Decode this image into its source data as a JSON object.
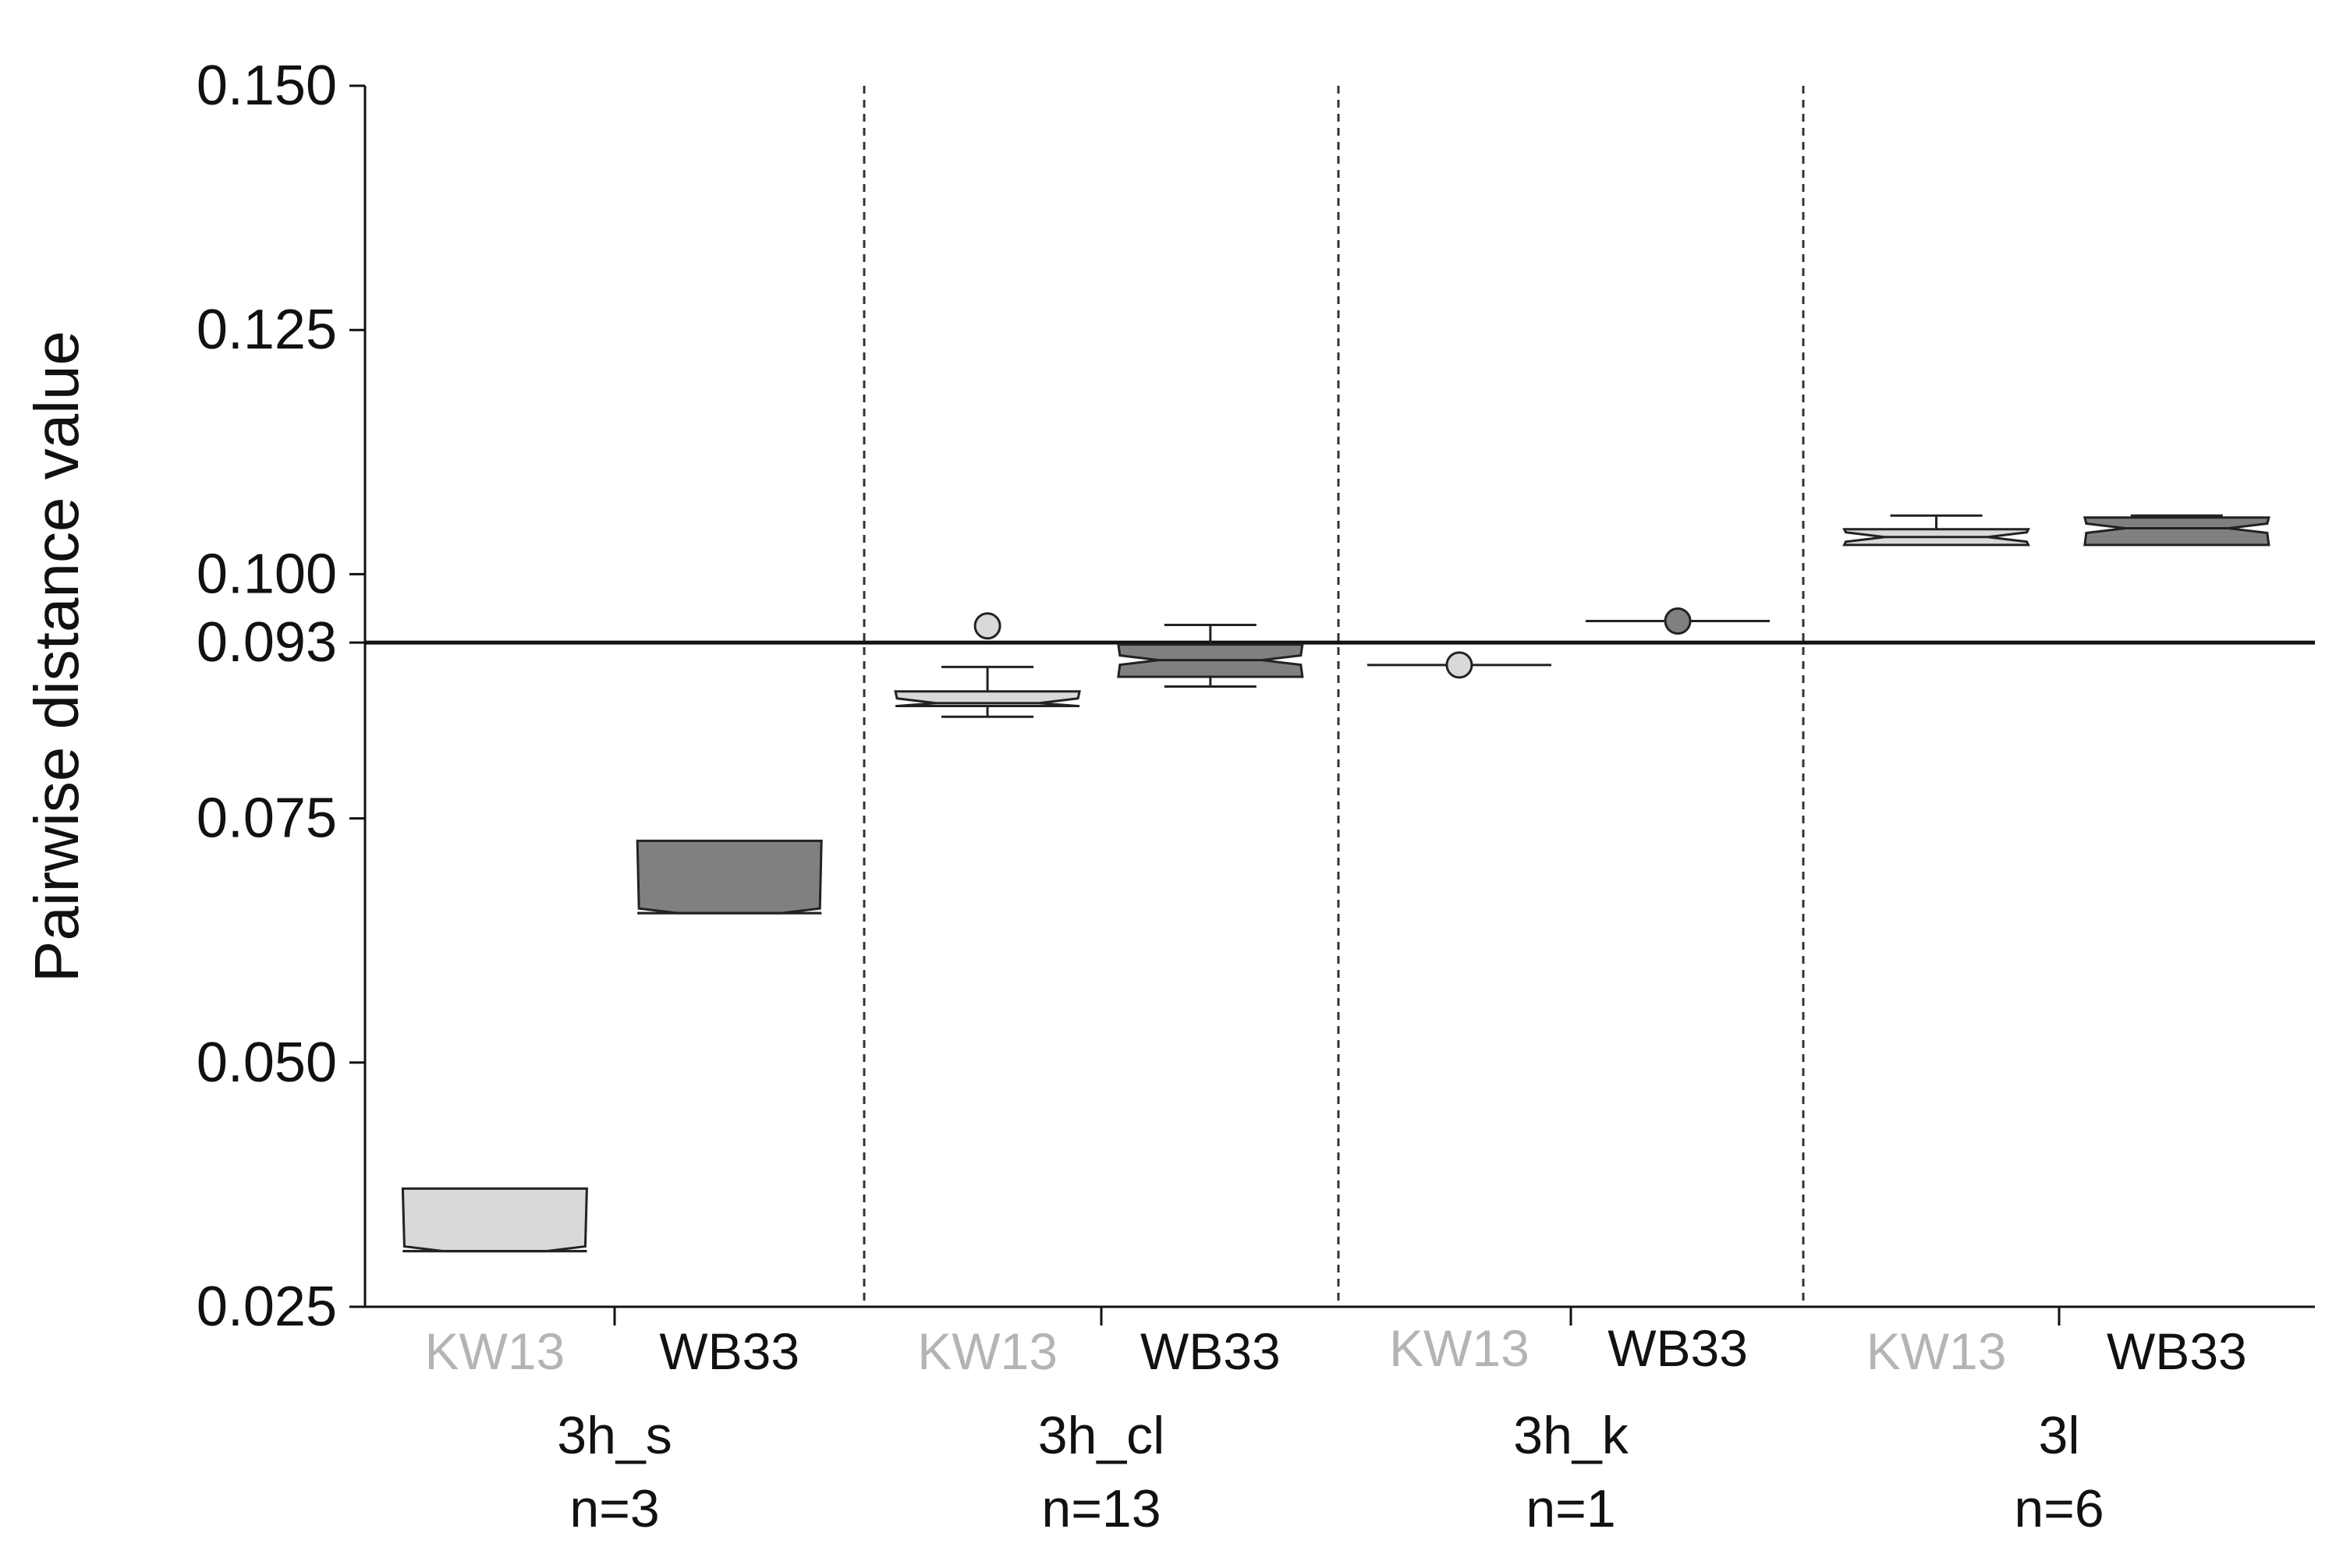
{
  "chart_data": {
    "type": "boxplot",
    "title": "",
    "xlabel": "",
    "ylabel": "Pairwise distance value",
    "ylim": [
      0.025,
      0.15
    ],
    "yticks": [
      "0.025",
      "0.050",
      "0.075",
      "0.093",
      "0.100",
      "0.125",
      "0.150"
    ],
    "threshold": {
      "value": 0.093,
      "label": "0.093"
    },
    "series_names": [
      "KW13",
      "WB33"
    ],
    "colors": {
      "KW13_fill": "#d9d9d9",
      "WB33_fill": "#808080",
      "KW13_text": "#b4b4b4",
      "WB33_text": "#111111",
      "axis": "#111111",
      "divider": "#333333"
    },
    "groups": [
      {
        "name": "3h_s",
        "n_label": "n=3",
        "boxes": [
          {
            "series": "KW13",
            "q1": 0.0307,
            "median": 0.0307,
            "q3": 0.0371,
            "whisker_low": 0.0307,
            "whisker_high": 0.0371,
            "outliers": []
          },
          {
            "series": "WB33",
            "q1": 0.0653,
            "median": 0.0653,
            "q3": 0.0727,
            "whisker_low": 0.0653,
            "whisker_high": 0.0727,
            "outliers": []
          }
        ]
      },
      {
        "name": "3h_cl",
        "n_label": "n=13",
        "boxes": [
          {
            "series": "KW13",
            "q1": 0.0865,
            "median": 0.0868,
            "q3": 0.088,
            "whisker_low": 0.0854,
            "whisker_high": 0.0905,
            "outliers": [
              0.0947
            ]
          },
          {
            "series": "WB33",
            "q1": 0.0895,
            "median": 0.0912,
            "q3": 0.0928,
            "whisker_low": 0.0885,
            "whisker_high": 0.0948,
            "outliers": []
          }
        ]
      },
      {
        "name": "3h_k",
        "n_label": "n=1",
        "boxes": [
          {
            "series": "KW13",
            "q1": 0.0907,
            "median": 0.0907,
            "q3": 0.0907,
            "whisker_low": 0.0907,
            "whisker_high": 0.0907,
            "outliers": [
              0.0907
            ]
          },
          {
            "series": "WB33",
            "q1": 0.0952,
            "median": 0.0952,
            "q3": 0.0952,
            "whisker_low": 0.0952,
            "whisker_high": 0.0952,
            "outliers": [
              0.0952
            ]
          }
        ]
      },
      {
        "name": "3l",
        "n_label": "n=6",
        "boxes": [
          {
            "series": "KW13",
            "q1": 0.103,
            "median": 0.1038,
            "q3": 0.1046,
            "whisker_low": 0.103,
            "whisker_high": 0.106,
            "outliers": []
          },
          {
            "series": "WB33",
            "q1": 0.103,
            "median": 0.1047,
            "q3": 0.1058,
            "whisker_low": 0.103,
            "whisker_high": 0.106,
            "outliers": []
          }
        ]
      }
    ]
  }
}
